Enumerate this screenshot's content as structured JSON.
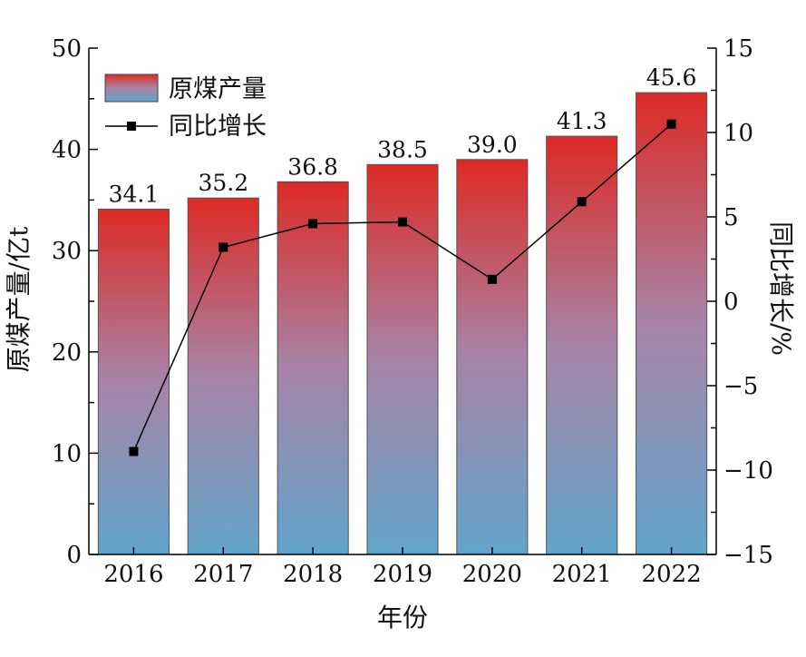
{
  "chart_data": {
    "type": "bar",
    "categories": [
      "2016",
      "2017",
      "2018",
      "2019",
      "2020",
      "2021",
      "2022"
    ],
    "series": [
      {
        "name": "原煤产量",
        "type": "bar",
        "axis": "left",
        "values": [
          34.1,
          35.2,
          36.8,
          38.5,
          39.0,
          41.3,
          45.6
        ],
        "labels": [
          "34.1",
          "35.2",
          "36.8",
          "38.5",
          "39.0",
          "41.3",
          "45.6"
        ]
      },
      {
        "name": "同比增长",
        "type": "line",
        "axis": "right",
        "values": [
          -8.9,
          3.2,
          4.6,
          4.7,
          1.3,
          5.9,
          10.5
        ]
      }
    ],
    "xlabel": "年份",
    "ylabel": "原煤产量/亿t",
    "y2label": "同比增长/%",
    "ylim": [
      0,
      50
    ],
    "y2lim": [
      -15,
      15
    ],
    "yticks": [
      0,
      10,
      20,
      30,
      40,
      50
    ],
    "y2ticks": [
      -15,
      -10,
      -5,
      0,
      5,
      10,
      15
    ],
    "grid": false,
    "legend_position": "top-left",
    "colors": {
      "bar_top": "#dd2a24",
      "bar_mid": "#a784a8",
      "bar_bottom": "#62a4c9",
      "line": "#000000"
    }
  }
}
